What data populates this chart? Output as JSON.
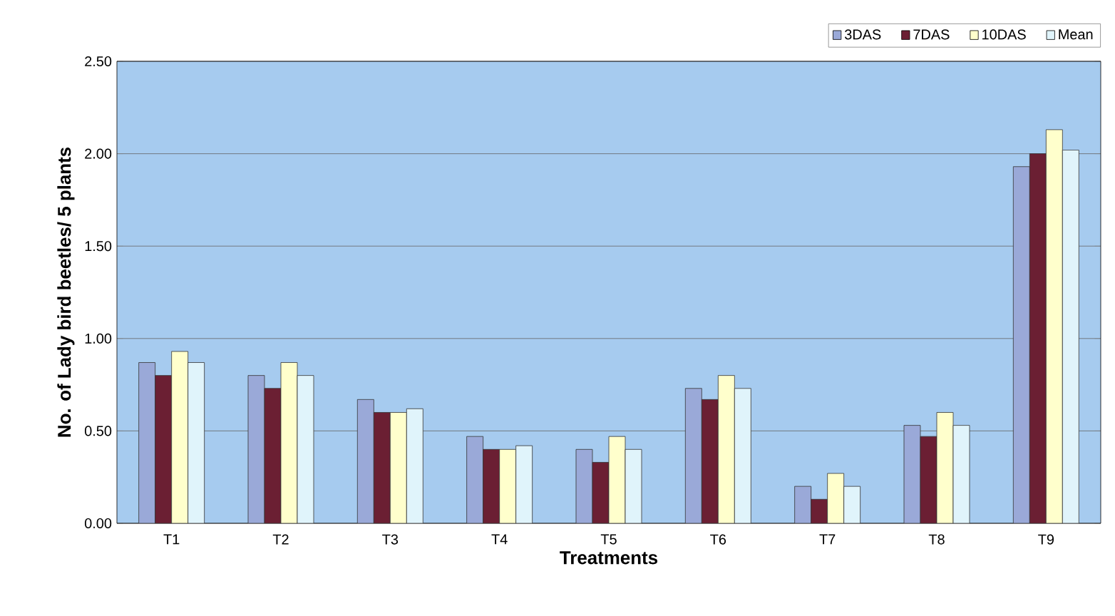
{
  "chart_data": {
    "type": "bar",
    "xlabel": "Treatments",
    "ylabel": "No. of Lady bird beetles/ 5 plants",
    "categories": [
      "T1",
      "T2",
      "T3",
      "T4",
      "T5",
      "T6",
      "T7",
      "T8",
      "T9"
    ],
    "series": [
      {
        "name": "3DAS",
        "color": "#9aa9d8",
        "values": [
          0.87,
          0.8,
          0.67,
          0.47,
          0.4,
          0.73,
          0.2,
          0.53,
          1.93
        ]
      },
      {
        "name": "7DAS",
        "color": "#6b1f33",
        "values": [
          0.8,
          0.73,
          0.6,
          0.4,
          0.33,
          0.67,
          0.13,
          0.47,
          2.0
        ]
      },
      {
        "name": "10DAS",
        "color": "#ffffcc",
        "values": [
          0.93,
          0.87,
          0.6,
          0.4,
          0.47,
          0.8,
          0.27,
          0.6,
          2.13
        ]
      },
      {
        "name": "Mean",
        "color": "#e0f4fb",
        "values": [
          0.87,
          0.8,
          0.62,
          0.42,
          0.4,
          0.73,
          0.2,
          0.53,
          2.02
        ]
      }
    ],
    "ylim": [
      0,
      2.5
    ],
    "yticks": [
      {
        "value": 0,
        "label": "0.00"
      },
      {
        "value": 0.5,
        "label": "0.50"
      },
      {
        "value": 1,
        "label": "1.00"
      },
      {
        "value": 1.5,
        "label": "1.50"
      },
      {
        "value": 2,
        "label": "2.00"
      },
      {
        "value": 2.5,
        "label": "2.50"
      }
    ],
    "grid": "y",
    "legend": "top right"
  }
}
